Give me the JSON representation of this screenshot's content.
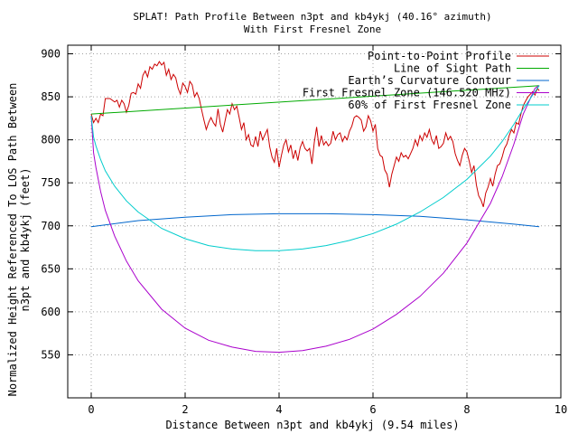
{
  "chart_data": {
    "type": "line",
    "title": "SPLAT! Path Profile Between n3pt and kb4ykj (40.16° azimuth)",
    "subtitle": "With First Fresnel Zone",
    "xlabel": "Distance Between n3pt and kb4ykj (9.54 miles)",
    "ylabel_line1": "Normalized Height Referenced To LOS Path Between",
    "ylabel_line2": "n3pt and kb4ykj (feet)",
    "xlim": [
      -0.5,
      10
    ],
    "ylim": [
      500,
      910
    ],
    "x_ticks": [
      0,
      2,
      4,
      6,
      8,
      10
    ],
    "y_ticks": [
      550,
      600,
      650,
      700,
      750,
      800,
      850,
      900
    ],
    "grid": true,
    "legend_position": "top-right",
    "series": [
      {
        "name": "Point-to-Point Profile",
        "color": "#cc0000",
        "points": [
          [
            0.0,
            830
          ],
          [
            0.05,
            820
          ],
          [
            0.1,
            825
          ],
          [
            0.15,
            820
          ],
          [
            0.2,
            830
          ],
          [
            0.25,
            828
          ],
          [
            0.3,
            848
          ],
          [
            0.4,
            848
          ],
          [
            0.5,
            844
          ],
          [
            0.55,
            846
          ],
          [
            0.6,
            838
          ],
          [
            0.65,
            846
          ],
          [
            0.7,
            842
          ],
          [
            0.75,
            832
          ],
          [
            0.8,
            840
          ],
          [
            0.85,
            854
          ],
          [
            0.9,
            855
          ],
          [
            0.95,
            853
          ],
          [
            1.0,
            865
          ],
          [
            1.05,
            860
          ],
          [
            1.1,
            875
          ],
          [
            1.15,
            880
          ],
          [
            1.2,
            873
          ],
          [
            1.25,
            885
          ],
          [
            1.3,
            882
          ],
          [
            1.35,
            888
          ],
          [
            1.4,
            886
          ],
          [
            1.45,
            891
          ],
          [
            1.5,
            887
          ],
          [
            1.55,
            890
          ],
          [
            1.6,
            875
          ],
          [
            1.65,
            882
          ],
          [
            1.7,
            870
          ],
          [
            1.75,
            876
          ],
          [
            1.8,
            872
          ],
          [
            1.85,
            860
          ],
          [
            1.9,
            853
          ],
          [
            1.95,
            866
          ],
          [
            2.0,
            862
          ],
          [
            2.05,
            855
          ],
          [
            2.1,
            868
          ],
          [
            2.15,
            864
          ],
          [
            2.2,
            850
          ],
          [
            2.25,
            855
          ],
          [
            2.3,
            848
          ],
          [
            2.35,
            835
          ],
          [
            2.4,
            823
          ],
          [
            2.45,
            812
          ],
          [
            2.5,
            820
          ],
          [
            2.55,
            826
          ],
          [
            2.6,
            820
          ],
          [
            2.65,
            816
          ],
          [
            2.7,
            836
          ],
          [
            2.75,
            818
          ],
          [
            2.8,
            809
          ],
          [
            2.85,
            822
          ],
          [
            2.9,
            835
          ],
          [
            2.95,
            830
          ],
          [
            3.0,
            842
          ],
          [
            3.05,
            835
          ],
          [
            3.1,
            839
          ],
          [
            3.15,
            826
          ],
          [
            3.2,
            812
          ],
          [
            3.25,
            820
          ],
          [
            3.3,
            800
          ],
          [
            3.35,
            806
          ],
          [
            3.4,
            794
          ],
          [
            3.45,
            792
          ],
          [
            3.5,
            804
          ],
          [
            3.55,
            792
          ],
          [
            3.6,
            810
          ],
          [
            3.65,
            800
          ],
          [
            3.7,
            806
          ],
          [
            3.75,
            812
          ],
          [
            3.8,
            792
          ],
          [
            3.85,
            780
          ],
          [
            3.9,
            774
          ],
          [
            3.95,
            790
          ],
          [
            4.0,
            768
          ],
          [
            4.05,
            782
          ],
          [
            4.1,
            794
          ],
          [
            4.15,
            800
          ],
          [
            4.2,
            786
          ],
          [
            4.25,
            794
          ],
          [
            4.3,
            778
          ],
          [
            4.35,
            788
          ],
          [
            4.4,
            776
          ],
          [
            4.45,
            791
          ],
          [
            4.5,
            798
          ],
          [
            4.55,
            790
          ],
          [
            4.6,
            787
          ],
          [
            4.65,
            790
          ],
          [
            4.7,
            772
          ],
          [
            4.75,
            797
          ],
          [
            4.8,
            815
          ],
          [
            4.85,
            792
          ],
          [
            4.9,
            805
          ],
          [
            4.95,
            794
          ],
          [
            5.0,
            798
          ],
          [
            5.05,
            793
          ],
          [
            5.1,
            796
          ],
          [
            5.15,
            810
          ],
          [
            5.2,
            800
          ],
          [
            5.25,
            806
          ],
          [
            5.3,
            808
          ],
          [
            5.35,
            798
          ],
          [
            5.4,
            804
          ],
          [
            5.45,
            800
          ],
          [
            5.5,
            810
          ],
          [
            5.55,
            816
          ],
          [
            5.6,
            826
          ],
          [
            5.65,
            828
          ],
          [
            5.7,
            826
          ],
          [
            5.75,
            823
          ],
          [
            5.8,
            810
          ],
          [
            5.85,
            815
          ],
          [
            5.9,
            828
          ],
          [
            5.95,
            822
          ],
          [
            6.0,
            810
          ],
          [
            6.05,
            818
          ],
          [
            6.1,
            790
          ],
          [
            6.15,
            782
          ],
          [
            6.2,
            780
          ],
          [
            6.25,
            765
          ],
          [
            6.3,
            760
          ],
          [
            6.35,
            745
          ],
          [
            6.4,
            760
          ],
          [
            6.45,
            770
          ],
          [
            6.5,
            780
          ],
          [
            6.55,
            775
          ],
          [
            6.6,
            785
          ],
          [
            6.65,
            780
          ],
          [
            6.7,
            782
          ],
          [
            6.75,
            778
          ],
          [
            6.8,
            784
          ],
          [
            6.85,
            790
          ],
          [
            6.9,
            800
          ],
          [
            6.95,
            793
          ],
          [
            7.0,
            805
          ],
          [
            7.05,
            799
          ],
          [
            7.1,
            808
          ],
          [
            7.15,
            803
          ],
          [
            7.2,
            812
          ],
          [
            7.25,
            800
          ],
          [
            7.3,
            795
          ],
          [
            7.35,
            805
          ],
          [
            7.4,
            790
          ],
          [
            7.45,
            792
          ],
          [
            7.5,
            796
          ],
          [
            7.55,
            808
          ],
          [
            7.6,
            800
          ],
          [
            7.65,
            804
          ],
          [
            7.7,
            798
          ],
          [
            7.75,
            784
          ],
          [
            7.8,
            776
          ],
          [
            7.85,
            770
          ],
          [
            7.9,
            782
          ],
          [
            7.95,
            790
          ],
          [
            8.0,
            786
          ],
          [
            8.05,
            775
          ],
          [
            8.1,
            762
          ],
          [
            8.15,
            770
          ],
          [
            8.2,
            748
          ],
          [
            8.25,
            735
          ],
          [
            8.3,
            730
          ],
          [
            8.35,
            722
          ],
          [
            8.4,
            738
          ],
          [
            8.45,
            745
          ],
          [
            8.5,
            755
          ],
          [
            8.55,
            746
          ],
          [
            8.6,
            760
          ],
          [
            8.65,
            770
          ],
          [
            8.7,
            772
          ],
          [
            8.75,
            780
          ],
          [
            8.8,
            790
          ],
          [
            8.85,
            795
          ],
          [
            8.9,
            805
          ],
          [
            8.95,
            812
          ],
          [
            9.0,
            808
          ],
          [
            9.05,
            820
          ],
          [
            9.1,
            818
          ],
          [
            9.15,
            830
          ],
          [
            9.2,
            840
          ],
          [
            9.25,
            845
          ],
          [
            9.3,
            850
          ],
          [
            9.35,
            853
          ],
          [
            9.4,
            856
          ],
          [
            9.45,
            852
          ],
          [
            9.5,
            860
          ],
          [
            9.54,
            857
          ]
        ]
      },
      {
        "name": "Line of Sight Path",
        "color": "#00aa00",
        "points": [
          [
            0.0,
            830
          ],
          [
            9.54,
            863
          ]
        ]
      },
      {
        "name": "Earth’s Curvature Contour",
        "color": "#0066cc",
        "points": [
          [
            0.0,
            699
          ],
          [
            1.0,
            706
          ],
          [
            2.0,
            710
          ],
          [
            3.0,
            713
          ],
          [
            4.0,
            714
          ],
          [
            5.0,
            714
          ],
          [
            6.0,
            713
          ],
          [
            7.0,
            711
          ],
          [
            8.0,
            707
          ],
          [
            9.0,
            702
          ],
          [
            9.54,
            699
          ]
        ]
      },
      {
        "name": "First Fresnel Zone (146.520 MHz)",
        "color": "#aa00cc",
        "points": [
          [
            0.0,
            828
          ],
          [
            0.05,
            785
          ],
          [
            0.1,
            768
          ],
          [
            0.2,
            740
          ],
          [
            0.3,
            718
          ],
          [
            0.5,
            688
          ],
          [
            0.75,
            659
          ],
          [
            1.0,
            636
          ],
          [
            1.5,
            603
          ],
          [
            2.0,
            581
          ],
          [
            2.5,
            567
          ],
          [
            3.0,
            559
          ],
          [
            3.5,
            554
          ],
          [
            4.0,
            553
          ],
          [
            4.5,
            555
          ],
          [
            5.0,
            560
          ],
          [
            5.5,
            568
          ],
          [
            6.0,
            580
          ],
          [
            6.5,
            597
          ],
          [
            7.0,
            618
          ],
          [
            7.5,
            645
          ],
          [
            8.0,
            680
          ],
          [
            8.5,
            726
          ],
          [
            8.75,
            757
          ],
          [
            9.0,
            795
          ],
          [
            9.2,
            830
          ],
          [
            9.35,
            848
          ],
          [
            9.45,
            860
          ],
          [
            9.54,
            863
          ]
        ]
      },
      {
        "name": "60% of First Fresnel Zone",
        "color": "#00cccc",
        "points": [
          [
            0.0,
            828
          ],
          [
            0.05,
            803
          ],
          [
            0.1,
            793
          ],
          [
            0.2,
            777
          ],
          [
            0.3,
            764
          ],
          [
            0.5,
            746
          ],
          [
            0.75,
            729
          ],
          [
            1.0,
            716
          ],
          [
            1.5,
            697
          ],
          [
            2.0,
            685
          ],
          [
            2.5,
            677
          ],
          [
            3.0,
            673
          ],
          [
            3.5,
            671
          ],
          [
            4.0,
            671
          ],
          [
            4.5,
            673
          ],
          [
            5.0,
            677
          ],
          [
            5.5,
            683
          ],
          [
            6.0,
            691
          ],
          [
            6.5,
            702
          ],
          [
            7.0,
            716
          ],
          [
            7.5,
            733
          ],
          [
            8.0,
            754
          ],
          [
            8.5,
            781
          ],
          [
            8.75,
            798
          ],
          [
            9.0,
            818
          ],
          [
            9.2,
            836
          ],
          [
            9.35,
            848
          ],
          [
            9.45,
            856
          ],
          [
            9.54,
            863
          ]
        ]
      }
    ]
  }
}
